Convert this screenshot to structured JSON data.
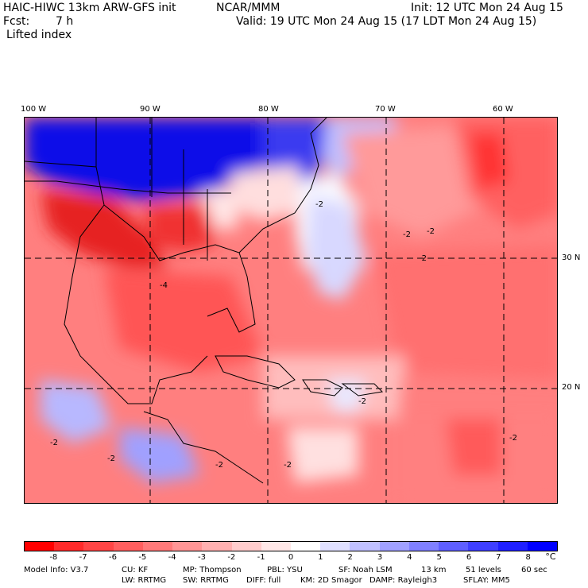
{
  "header": {
    "title_left": "HAIC-HIWC 13km ARW-GFS init",
    "org": "NCAR/MMM",
    "init": "Init: 12 UTC Mon 24 Aug 15",
    "fcst_label": "Fcst:",
    "fcst_value": "7 h",
    "valid": "Valid: 19 UTC Mon 24 Aug 15 (17 LDT Mon 24 Aug 15)",
    "field": "Lifted index"
  },
  "map": {
    "lon_labels": [
      "100 W",
      "90 W",
      "80 W",
      "70 W",
      "60 W"
    ],
    "lat_labels": [
      "30 N",
      "20 N"
    ],
    "contour_labels": [
      "-2",
      "-2",
      "-2",
      "-2",
      "-2",
      "-4",
      "-2",
      "-2",
      "-2",
      "-2",
      "-2"
    ]
  },
  "colorbar": {
    "unit": "°C",
    "ticks": [
      "-8",
      "-7",
      "-6",
      "-5",
      "-4",
      "-3",
      "-2",
      "-1",
      "0",
      "1",
      "2",
      "3",
      "4",
      "5",
      "6",
      "7",
      "8"
    ],
    "colors": [
      "#ff0000",
      "#ff2a2a",
      "#ff4545",
      "#ff5f5f",
      "#ff7a7a",
      "#ff9595",
      "#ffb0b0",
      "#ffcccc",
      "#ffe8e8",
      "#ffffff",
      "#e0e0ff",
      "#c0c0ff",
      "#a0a0ff",
      "#8080ff",
      "#5f5fff",
      "#3f3fff",
      "#1f1fff",
      "#0000ff"
    ]
  },
  "footer": {
    "line1": [
      "Model Info: V3.7",
      "CU: KF",
      "MP: Thompson",
      "PBL: YSU",
      "SF: Noah LSM",
      "13 km",
      "51 levels",
      "60 sec"
    ],
    "line2": [
      "LW: RRTMG",
      "SW: RRTMG",
      "DIFF: full",
      "KM: 2D Smagor",
      "DAMP: Rayleigh3",
      "SFLAY: MM5"
    ]
  }
}
